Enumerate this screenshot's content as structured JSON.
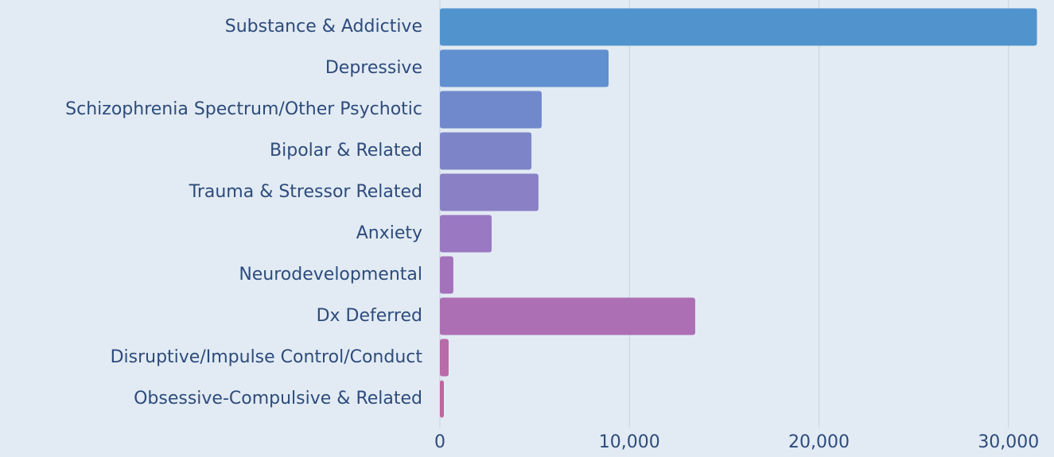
{
  "chart_data": {
    "type": "hbar",
    "categories": [
      "Substance & Addictive",
      "Depressive",
      "Schizophrenia Spectrum/Other Psychotic",
      "Bipolar & Related",
      "Trauma & Stressor Related",
      "Anxiety",
      "Neurodevelopmental",
      "Dx Deferred",
      "Disruptive/Impulse Control/Conduct",
      "Obsessive-Compulsive & Related"
    ],
    "values": [
      31500,
      8900,
      5370,
      4830,
      5200,
      2730,
      710,
      13470,
      460,
      210
    ],
    "colors": [
      "#5193cd",
      "#6190d0",
      "#7089cc",
      "#7d85c8",
      "#8a80c5",
      "#9a79c2",
      "#a472bb",
      "#ad6fb4",
      "#b96aa9",
      "#c3649f"
    ],
    "xlim": [
      0,
      32400
    ],
    "xticks": [
      0,
      {
        "value": 10000,
        "label": "10,000"
      },
      {
        "value": 20000,
        "label": "20,000"
      },
      {
        "value": 30000,
        "label": "30,000"
      }
    ],
    "grid": true
  }
}
